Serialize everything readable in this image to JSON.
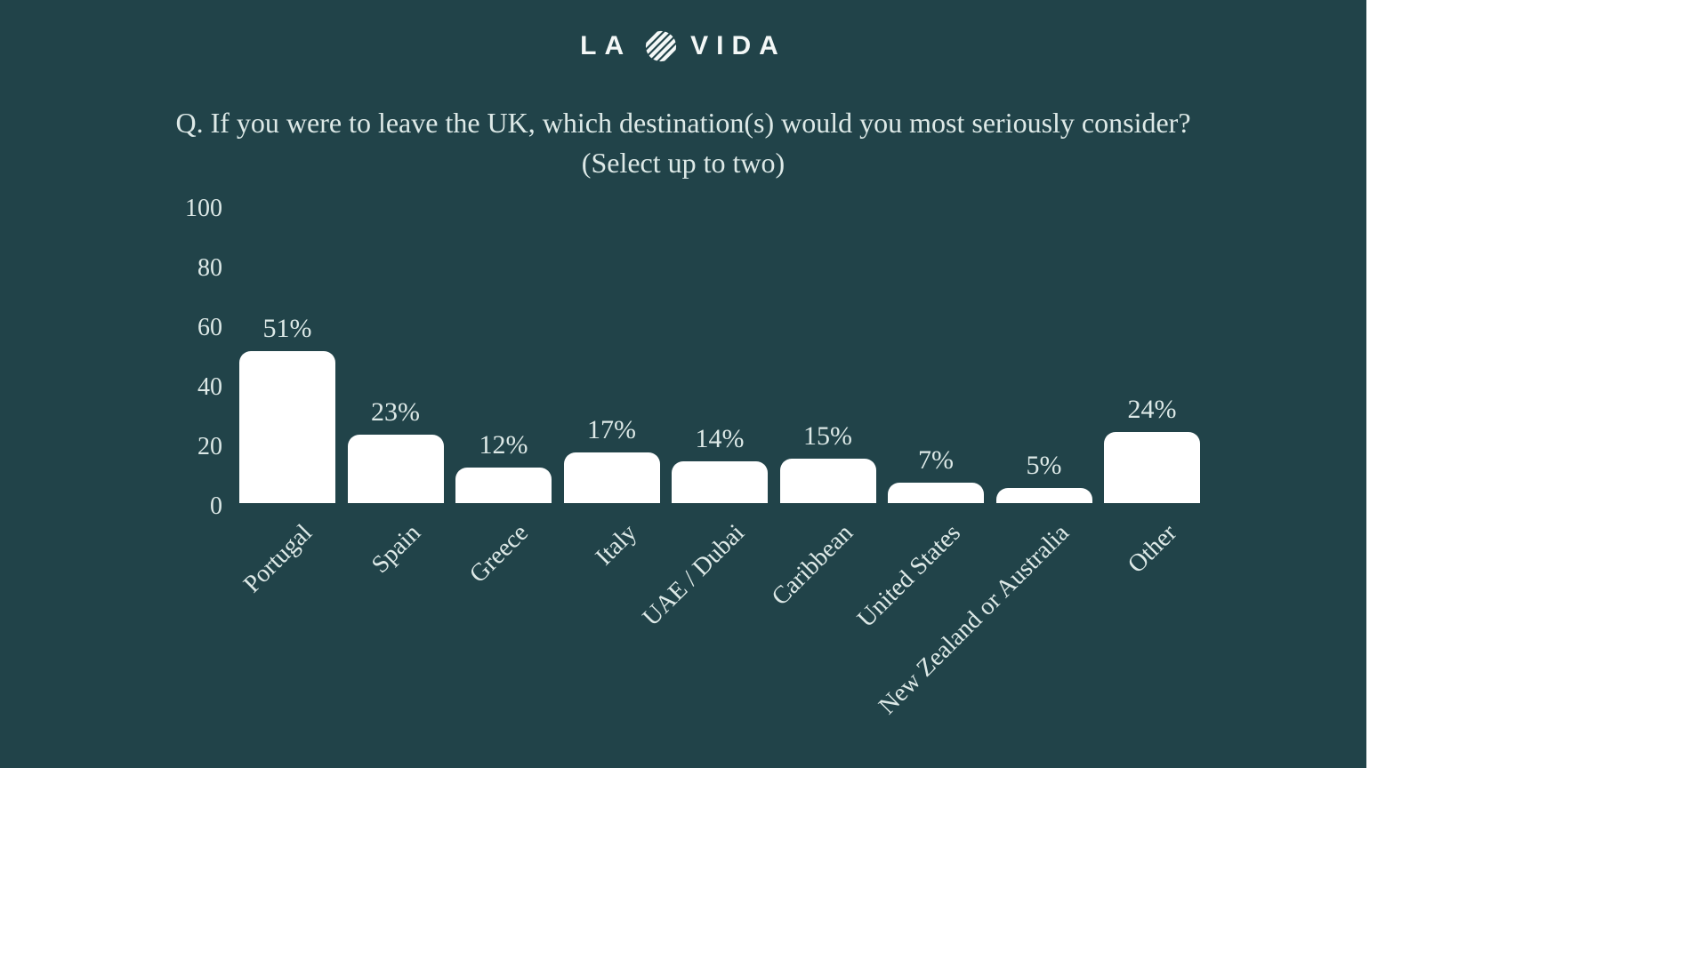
{
  "logo": {
    "text_left": "LA",
    "text_right": "VIDA",
    "icon": "striped-circle-icon"
  },
  "title": {
    "line1": "Q. If you were to leave the UK, which destination(s) would you most seriously consider?",
    "line2": "(Select up to two)"
  },
  "colors": {
    "panel_background": "#214349",
    "text": "#dde9e7",
    "bar_fill": "#ffffff"
  },
  "chart_data": {
    "type": "bar",
    "title": "Q. If you were to leave the UK, which destination(s) would you most seriously consider? (Select up to two)",
    "categories": [
      "Portugal",
      "Spain",
      "Greece",
      "Italy",
      "UAE / Dubai",
      "Caribbean",
      "United States",
      "New Zealand or Australia",
      "Other"
    ],
    "values": [
      51,
      23,
      12,
      17,
      14,
      15,
      7,
      5,
      24
    ],
    "value_labels": [
      "51%",
      "23%",
      "12%",
      "17%",
      "14%",
      "15%",
      "7%",
      "5%",
      "24%"
    ],
    "yticks": [
      0,
      20,
      40,
      60,
      80,
      100
    ],
    "ylim": [
      0,
      100
    ],
    "xlabel": "",
    "ylabel": "",
    "grid": false,
    "legend": "none",
    "bar_color": "#ffffff",
    "background": "#214349",
    "x_label_rotation_deg": 45
  }
}
